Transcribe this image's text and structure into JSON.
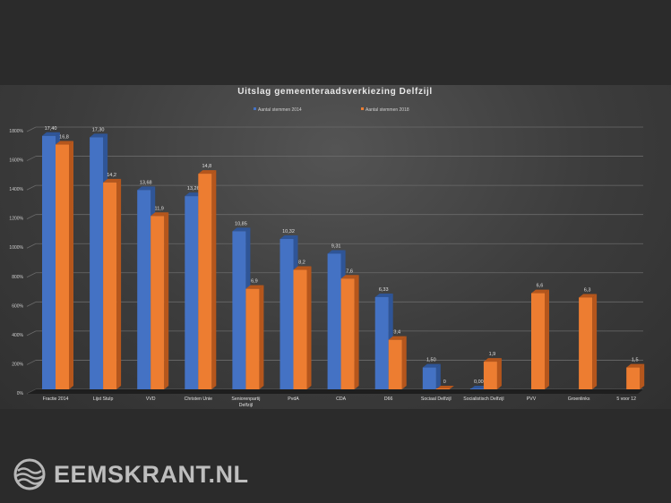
{
  "chart_data": {
    "type": "bar",
    "title": "Uitslag  gemeenteraadsverkiezing  Delfzijl",
    "categories": [
      "Fractie 2014",
      "Lijst Stulp",
      "VVD",
      "Christen Unie",
      "Seniorenpartij Delfzijl",
      "PvdA",
      "CDA",
      "D66",
      "Sociaal Delfzijl",
      "Socialistisch Delfzijl",
      "PVV",
      "Groenlinks",
      "5 voor 12"
    ],
    "series": [
      {
        "name": "Aantal stemmen 2014",
        "color": "#4472c4",
        "values": [
          17.4,
          17.3,
          13.68,
          13.26,
          10.85,
          10.32,
          9.31,
          6.33,
          1.5,
          0.0,
          null,
          null,
          null
        ],
        "labels": [
          "17,40",
          "17,30",
          "13,68",
          "13,26",
          "10,85",
          "10,32",
          "9,31",
          "6,33",
          "1,50",
          "0,00",
          "",
          "",
          ""
        ]
      },
      {
        "name": "Aantal stemmen 2018",
        "color": "#ed7d31",
        "values": [
          16.8,
          14.2,
          11.9,
          14.8,
          6.9,
          8.2,
          7.6,
          3.4,
          0,
          1.9,
          6.6,
          6.3,
          1.5
        ],
        "labels": [
          "16,8",
          "14,2",
          "11,9",
          "14,8",
          "6,9",
          "8,2",
          "7,6",
          "3,4",
          "0",
          "1,9",
          "6,6",
          "6,3",
          "1,5"
        ]
      }
    ],
    "yticks": [
      "0%",
      "200%",
      "400%",
      "600%",
      "800%",
      "1000%",
      "1200%",
      "1400%",
      "1600%",
      "1800%"
    ],
    "ylim": [
      0,
      18
    ],
    "grid": true,
    "legend_position": "top-center"
  },
  "watermark": "EEMSKRANT.NL"
}
